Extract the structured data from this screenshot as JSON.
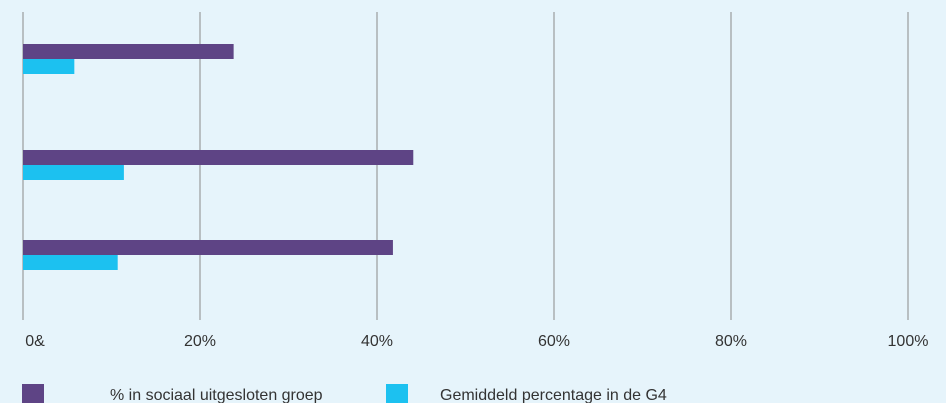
{
  "chart_data": {
    "type": "bar",
    "orientation": "horizontal",
    "categories": [
      "",
      "",
      ""
    ],
    "series": [
      {
        "name": "% in sociaal uitgesloten groep",
        "color": "#5e4485",
        "values": [
          23.8,
          44.1,
          41.8
        ]
      },
      {
        "name": "Gemiddeld percentage in de G4",
        "color": "#1cc1f0",
        "values": [
          5.8,
          11.4,
          10.7
        ]
      }
    ],
    "xlim": [
      0,
      100
    ],
    "x_ticks": [
      0,
      20,
      40,
      60,
      80,
      100
    ],
    "x_tick_labels": [
      "0&",
      "20%",
      "40%",
      "60%",
      "80%",
      "100%"
    ],
    "grid": "vertical",
    "legend_position": "bottom-left",
    "title": "",
    "xlabel": "",
    "ylabel": ""
  }
}
